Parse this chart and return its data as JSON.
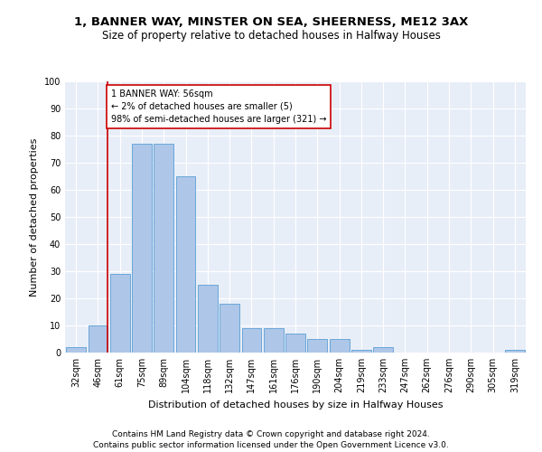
{
  "title1": "1, BANNER WAY, MINSTER ON SEA, SHEERNESS, ME12 3AX",
  "title2": "Size of property relative to detached houses in Halfway Houses",
  "xlabel": "Distribution of detached houses by size in Halfway Houses",
  "ylabel": "Number of detached properties",
  "categories": [
    "32sqm",
    "46sqm",
    "61sqm",
    "75sqm",
    "89sqm",
    "104sqm",
    "118sqm",
    "132sqm",
    "147sqm",
    "161sqm",
    "176sqm",
    "190sqm",
    "204sqm",
    "219sqm",
    "233sqm",
    "247sqm",
    "262sqm",
    "276sqm",
    "290sqm",
    "305sqm",
    "319sqm"
  ],
  "values": [
    2,
    10,
    29,
    77,
    77,
    65,
    25,
    18,
    9,
    9,
    7,
    5,
    5,
    1,
    2,
    0,
    0,
    0,
    0,
    0,
    1
  ],
  "bar_color": "#aec6e8",
  "bar_edge_color": "#5a9fd4",
  "bg_color": "#e8eef8",
  "grid_color": "#ffffff",
  "vline_color": "#cc0000",
  "annotation_text": "1 BANNER WAY: 56sqm\n← 2% of detached houses are smaller (5)\n98% of semi-detached houses are larger (321) →",
  "annotation_box_color": "#ffffff",
  "annotation_edge_color": "#cc0000",
  "footer1": "Contains HM Land Registry data © Crown copyright and database right 2024.",
  "footer2": "Contains public sector information licensed under the Open Government Licence v3.0.",
  "ylim": [
    0,
    100
  ],
  "title_fontsize": 9.5,
  "subtitle_fontsize": 8.5,
  "axis_label_fontsize": 8,
  "tick_fontsize": 7,
  "annotation_fontsize": 7,
  "footer_fontsize": 6.5
}
